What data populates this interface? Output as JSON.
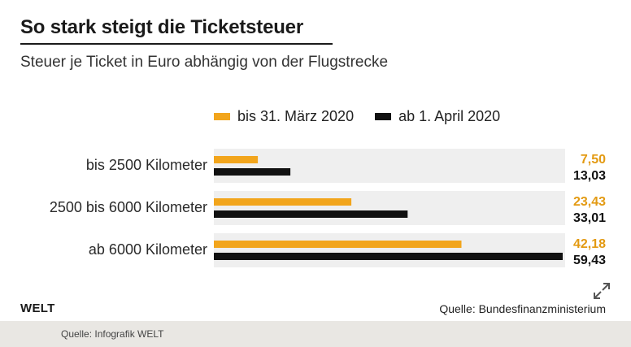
{
  "header": {
    "title": "So stark steigt die Ticketsteuer",
    "subtitle": "Steuer je Ticket in Euro abhängig von der Flugstrecke"
  },
  "legend": [
    {
      "label": "bis 31. März 2020",
      "color": "#f2a51c"
    },
    {
      "label": "ab 1. April 2020",
      "color": "#111111"
    }
  ],
  "chart_data": {
    "type": "bar",
    "orientation": "horizontal",
    "categories": [
      "bis 2500 Kilometer",
      "2500 bis 6000 Kilometer",
      "ab 6000 Kilometer"
    ],
    "series": [
      {
        "name": "bis 31. März 2020",
        "color": "#f2a51c",
        "values": [
          7.5,
          23.43,
          42.18
        ],
        "value_labels": [
          "7,50",
          "23,43",
          "42,18"
        ]
      },
      {
        "name": "ab 1. April 2020",
        "color": "#111111",
        "values": [
          13.03,
          33.01,
          59.43
        ],
        "value_labels": [
          "13,03",
          "33,01",
          "59,43"
        ]
      }
    ],
    "title": "So stark steigt die Ticketsteuer",
    "subtitle": "Steuer je Ticket in Euro abhängig von der Flugstrecke",
    "xlim": [
      0,
      59.43
    ],
    "grid": false,
    "legend_position": "top"
  },
  "branding": {
    "logo": "WELT"
  },
  "source": "Quelle: Bundesfinanzministerium",
  "footer": {
    "credit": "Quelle: Infografik WELT"
  },
  "icons": {
    "expand": "expand-icon"
  }
}
